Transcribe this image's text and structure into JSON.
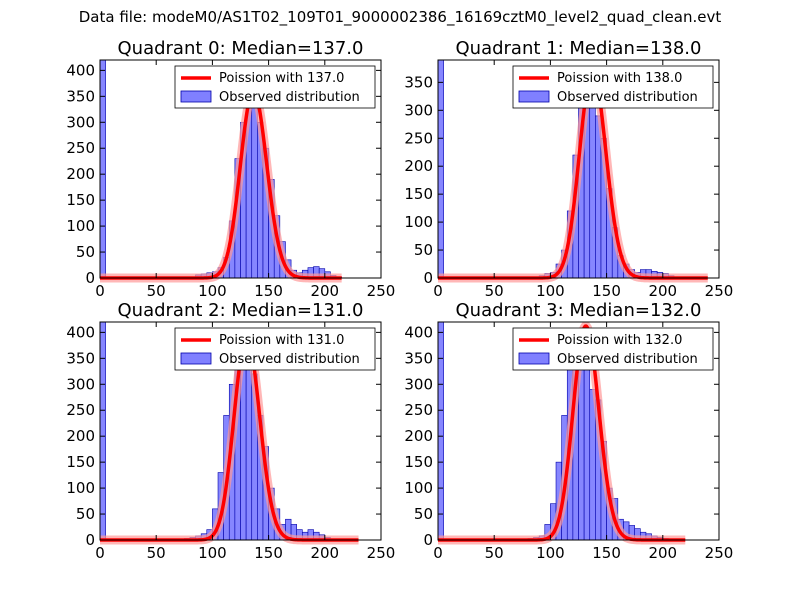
{
  "suptitle": "Data file: modeM0/AS1T02_109T01_9000002386_16169cztM0_level2_quad_clean.evt",
  "colors": {
    "bar_fill": "#8080ff",
    "bar_edge": "#0000aa",
    "fit_line": "#ff0000",
    "fit_line_glow": "#ff9999"
  },
  "chart_data": [
    {
      "type": "bar",
      "title": "Quadrant 0: Median=137.0",
      "median": 137.0,
      "xlim": [
        0,
        250
      ],
      "ylim": [
        0,
        420
      ],
      "xticks": [
        0,
        50,
        100,
        150,
        200,
        250
      ],
      "yticks": [
        0,
        50,
        100,
        150,
        200,
        250,
        300,
        350,
        400
      ],
      "bin_width": 5,
      "bins": [
        [
          0,
          420
        ],
        [
          80,
          2
        ],
        [
          85,
          6
        ],
        [
          90,
          8
        ],
        [
          95,
          10
        ],
        [
          100,
          12
        ],
        [
          105,
          20
        ],
        [
          110,
          40
        ],
        [
          115,
          110
        ],
        [
          120,
          230
        ],
        [
          125,
          300
        ],
        [
          130,
          350
        ],
        [
          135,
          330
        ],
        [
          140,
          300
        ],
        [
          145,
          250
        ],
        [
          150,
          190
        ],
        [
          155,
          120
        ],
        [
          160,
          70
        ],
        [
          165,
          35
        ],
        [
          170,
          15
        ],
        [
          175,
          10
        ],
        [
          180,
          15
        ],
        [
          185,
          20
        ],
        [
          190,
          22
        ],
        [
          195,
          18
        ],
        [
          200,
          12
        ],
        [
          205,
          5
        ],
        [
          210,
          2
        ]
      ],
      "fit_x_max": 215,
      "legend": [
        "Poission with 137.0",
        "Observed distribution"
      ]
    },
    {
      "type": "bar",
      "title": "Quadrant 1: Median=138.0",
      "median": 138.0,
      "xlim": [
        0,
        250
      ],
      "ylim": [
        0,
        390
      ],
      "xticks": [
        0,
        50,
        100,
        150,
        200,
        250
      ],
      "yticks": [
        0,
        50,
        100,
        150,
        200,
        250,
        300,
        350
      ],
      "bin_width": 5,
      "bins": [
        [
          0,
          390
        ],
        [
          85,
          2
        ],
        [
          90,
          4
        ],
        [
          95,
          8
        ],
        [
          100,
          10
        ],
        [
          105,
          25
        ],
        [
          110,
          50
        ],
        [
          115,
          120
        ],
        [
          120,
          220
        ],
        [
          125,
          330
        ],
        [
          130,
          360
        ],
        [
          135,
          340
        ],
        [
          140,
          290
        ],
        [
          145,
          250
        ],
        [
          150,
          160
        ],
        [
          155,
          90
        ],
        [
          160,
          40
        ],
        [
          165,
          25
        ],
        [
          170,
          15
        ],
        [
          175,
          10
        ],
        [
          180,
          15
        ],
        [
          185,
          15
        ],
        [
          190,
          12
        ],
        [
          195,
          10
        ],
        [
          200,
          8
        ],
        [
          205,
          4
        ],
        [
          210,
          2
        ],
        [
          215,
          2
        ]
      ],
      "fit_x_max": 240,
      "legend": [
        "Poission with 138.0",
        "Observed distribution"
      ]
    },
    {
      "type": "bar",
      "title": "Quadrant 2: Median=131.0",
      "median": 131.0,
      "xlim": [
        0,
        250
      ],
      "ylim": [
        0,
        420
      ],
      "xticks": [
        0,
        50,
        100,
        150,
        200,
        250
      ],
      "yticks": [
        0,
        50,
        100,
        150,
        200,
        250,
        300,
        350,
        400
      ],
      "bin_width": 5,
      "bins": [
        [
          0,
          420
        ],
        [
          75,
          3
        ],
        [
          80,
          5
        ],
        [
          85,
          8
        ],
        [
          90,
          12
        ],
        [
          95,
          20
        ],
        [
          100,
          60
        ],
        [
          105,
          130
        ],
        [
          110,
          240
        ],
        [
          115,
          300
        ],
        [
          120,
          360
        ],
        [
          125,
          380
        ],
        [
          130,
          370
        ],
        [
          135,
          320
        ],
        [
          140,
          240
        ],
        [
          145,
          180
        ],
        [
          150,
          100
        ],
        [
          155,
          60
        ],
        [
          160,
          30
        ],
        [
          165,
          40
        ],
        [
          170,
          30
        ],
        [
          175,
          20
        ],
        [
          180,
          15
        ],
        [
          185,
          20
        ],
        [
          190,
          15
        ],
        [
          195,
          10
        ],
        [
          200,
          5
        ],
        [
          205,
          2
        ]
      ],
      "fit_x_max": 230,
      "legend": [
        "Poission with 131.0",
        "Observed distribution"
      ]
    },
    {
      "type": "bar",
      "title": "Quadrant 3: Median=132.0",
      "median": 132.0,
      "xlim": [
        0,
        250
      ],
      "ylim": [
        0,
        420
      ],
      "xticks": [
        0,
        50,
        100,
        150,
        200,
        250
      ],
      "yticks": [
        0,
        50,
        100,
        150,
        200,
        250,
        300,
        350,
        400
      ],
      "bin_width": 5,
      "bins": [
        [
          0,
          420
        ],
        [
          80,
          3
        ],
        [
          85,
          5
        ],
        [
          90,
          8
        ],
        [
          95,
          30
        ],
        [
          100,
          70
        ],
        [
          105,
          150
        ],
        [
          110,
          240
        ],
        [
          115,
          330
        ],
        [
          120,
          360
        ],
        [
          125,
          400
        ],
        [
          130,
          380
        ],
        [
          135,
          290
        ],
        [
          140,
          270
        ],
        [
          145,
          190
        ],
        [
          150,
          100
        ],
        [
          155,
          80
        ],
        [
          160,
          40
        ],
        [
          165,
          35
        ],
        [
          170,
          28
        ],
        [
          175,
          22
        ],
        [
          180,
          15
        ],
        [
          185,
          12
        ],
        [
          190,
          8
        ],
        [
          195,
          5
        ],
        [
          200,
          3
        ]
      ],
      "fit_x_max": 220,
      "legend": [
        "Poission with 132.0",
        "Observed distribution"
      ]
    }
  ]
}
